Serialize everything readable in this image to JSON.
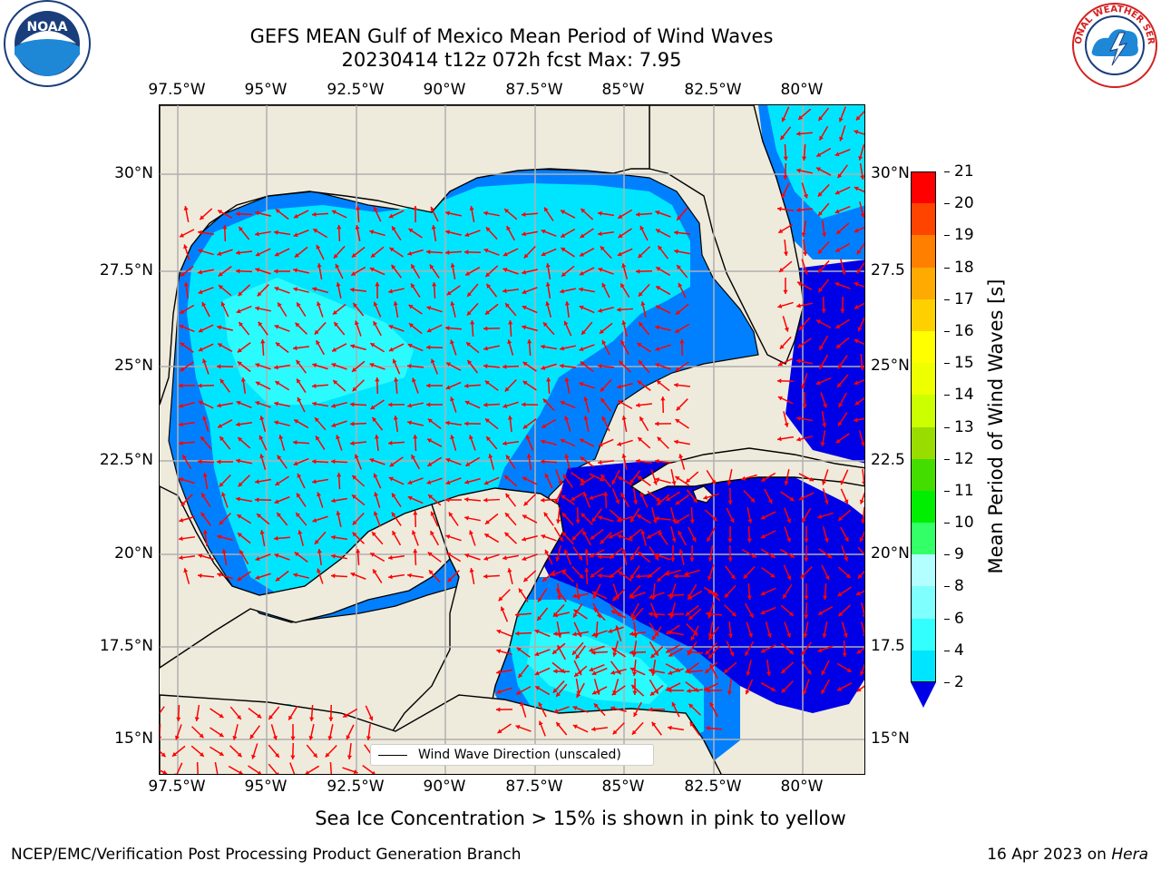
{
  "header": {
    "title_line1": "GEFS MEAN Gulf of Mexico Mean Period of Wind Waves",
    "title_line2": "20230414 t12z 072h fcst   Max: 7.95"
  },
  "logos": {
    "left": "NOAA",
    "right": "NATIONAL WEATHER SERVICE"
  },
  "map": {
    "lon_labels": [
      "97.5°W",
      "95°W",
      "92.5°W",
      "90°W",
      "87.5°W",
      "85°W",
      "82.5°W",
      "80°W"
    ],
    "lat_labels_left": [
      "30°N",
      "27.5°N",
      "25°N",
      "22.5°N",
      "20°N",
      "17.5°N",
      "15°N"
    ],
    "lat_labels_right": [
      "30°N",
      "27.5",
      "25°N",
      "22.5",
      "20°N",
      "17.5",
      "15°N"
    ],
    "legend_label": "Wind Wave Direction (unscaled)",
    "arrow_color": "#ff0000",
    "land_color": "#efebdc"
  },
  "colorbar": {
    "title": "Mean Period of Wind Waves [s]",
    "levels": [
      "2",
      "4",
      "6",
      "8",
      "9",
      "10",
      "11",
      "12",
      "13",
      "14",
      "15",
      "16",
      "17",
      "18",
      "19",
      "20",
      "21"
    ],
    "colors": [
      "#0080ff",
      "#00e5ff",
      "#33ffff",
      "#80ffff",
      "#b3ffff",
      "#33ff66",
      "#00ee00",
      "#44dd00",
      "#99dd00",
      "#ccff00",
      "#eeff00",
      "#ffff00",
      "#ffd000",
      "#ffaa00",
      "#ff8000",
      "#ff4400",
      "#ff0000"
    ],
    "extend_color": "#0000e6"
  },
  "footer": {
    "note": "Sea Ice Concentration > 15% is shown in pink to yellow",
    "left": "NCEP/EMC/Verification Post Processing Product Generation Branch",
    "right_prefix": "16 Apr 2023 on ",
    "right_host": "Hera"
  }
}
